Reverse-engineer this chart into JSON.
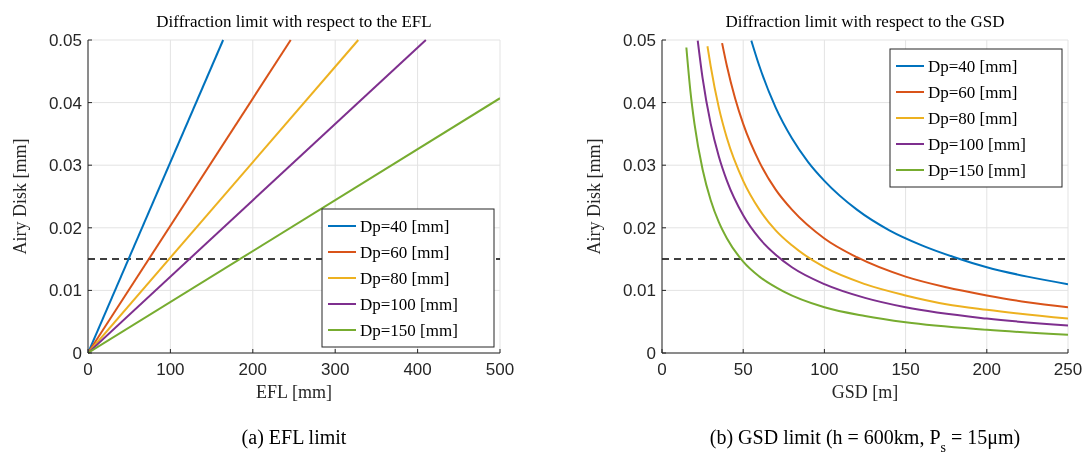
{
  "chart_data": [
    {
      "type": "line",
      "title": "Diffraction limit with respect to the EFL",
      "xlabel": "EFL [mm]",
      "ylabel": "Airy Disk [mm]",
      "annotations": [
        "(a) EFL limit"
      ],
      "xlim": [
        0,
        500
      ],
      "xticks": [
        0,
        100,
        200,
        300,
        400,
        500
      ],
      "ylim": [
        0,
        0.05
      ],
      "yticks": [
        0,
        0.01,
        0.02,
        0.03,
        0.04,
        0.05
      ],
      "grid": true,
      "legend": "bottom right",
      "line_style": "solid",
      "ref_lines": [
        {
          "axis": "y",
          "value": 0.015,
          "color": "#000000",
          "line_style": "dashed"
        }
      ],
      "series": [
        {
          "name": "Dp=40 [mm]",
          "color": "#0072bd",
          "x": [
            0,
            164
          ],
          "values": [
            0,
            0.05
          ]
        },
        {
          "name": "Dp=60 [mm]",
          "color": "#d95319",
          "x": [
            0,
            246
          ],
          "values": [
            0,
            0.05
          ]
        },
        {
          "name": "Dp=80 [mm]",
          "color": "#edb120",
          "x": [
            0,
            328
          ],
          "values": [
            0,
            0.05
          ]
        },
        {
          "name": "Dp=100 [mm]",
          "color": "#7e2f8e",
          "x": [
            0,
            410
          ],
          "values": [
            0,
            0.05
          ]
        },
        {
          "name": "Dp=150 [mm]",
          "color": "#77ac30",
          "x": [
            0,
            500
          ],
          "values": [
            0,
            0.0407
          ]
        }
      ]
    },
    {
      "type": "line",
      "title": "Diffraction limit with respect to the GSD",
      "xlabel": "GSD [m]",
      "ylabel": "Airy Disk [mm]",
      "annotations": [
        "(b) GSD limit (h = 600km, P$_{s}$ = 15μm)"
      ],
      "xlim": [
        0,
        250
      ],
      "xticks": [
        0,
        50,
        100,
        150,
        200,
        250
      ],
      "ylim": [
        0,
        0.05
      ],
      "yticks": [
        0,
        0.01,
        0.02,
        0.03,
        0.04,
        0.05
      ],
      "grid": true,
      "legend": "top right",
      "line_style": "solid",
      "ref_lines": [
        {
          "axis": "y",
          "value": 0.015,
          "color": "#000000",
          "line_style": "dashed"
        }
      ],
      "series": [
        {
          "name": "Dp=40 [mm]",
          "color": "#0072bd",
          "x": [
            55,
            60,
            70,
            80,
            90,
            100,
            120,
            140,
            160,
            180,
            200,
            225,
            250
          ],
          "values": [
            0.0499,
            0.0458,
            0.0392,
            0.0343,
            0.0305,
            0.0275,
            0.0229,
            0.0196,
            0.0172,
            0.0153,
            0.0137,
            0.0122,
            0.011
          ]
        },
        {
          "name": "Dp=60 [mm]",
          "color": "#d95319",
          "x": [
            37,
            40,
            45,
            50,
            60,
            70,
            80,
            100,
            120,
            150,
            175,
            200,
            225,
            250
          ],
          "values": [
            0.0495,
            0.0458,
            0.0407,
            0.0366,
            0.0305,
            0.0261,
            0.0229,
            0.0183,
            0.0153,
            0.0122,
            0.0105,
            0.0092,
            0.0081,
            0.0073
          ]
        },
        {
          "name": "Dp=80 [mm]",
          "color": "#edb120",
          "x": [
            28,
            30,
            35,
            40,
            50,
            60,
            70,
            80,
            100,
            125,
            150,
            175,
            200,
            250
          ],
          "values": [
            0.049,
            0.0458,
            0.0392,
            0.0343,
            0.0275,
            0.0229,
            0.0196,
            0.0172,
            0.0137,
            0.011,
            0.0092,
            0.0078,
            0.0069,
            0.0055
          ]
        },
        {
          "name": "Dp=100 [mm]",
          "color": "#7e2f8e",
          "x": [
            22,
            25,
            30,
            35,
            40,
            50,
            60,
            70,
            80,
            100,
            125,
            150,
            200,
            250
          ],
          "values": [
            0.0499,
            0.0439,
            0.0366,
            0.0314,
            0.0275,
            0.022,
            0.0183,
            0.0157,
            0.0137,
            0.011,
            0.0088,
            0.0073,
            0.0055,
            0.0044
          ]
        },
        {
          "name": "Dp=150 [mm]",
          "color": "#77ac30",
          "x": [
            15,
            17.5,
            20,
            25,
            30,
            35,
            40,
            50,
            60,
            75,
            100,
            125,
            150,
            200,
            250
          ],
          "values": [
            0.0488,
            0.0418,
            0.0366,
            0.0293,
            0.0244,
            0.0209,
            0.0183,
            0.0146,
            0.0122,
            0.0098,
            0.0073,
            0.0059,
            0.0049,
            0.0037,
            0.0029
          ]
        }
      ]
    }
  ]
}
